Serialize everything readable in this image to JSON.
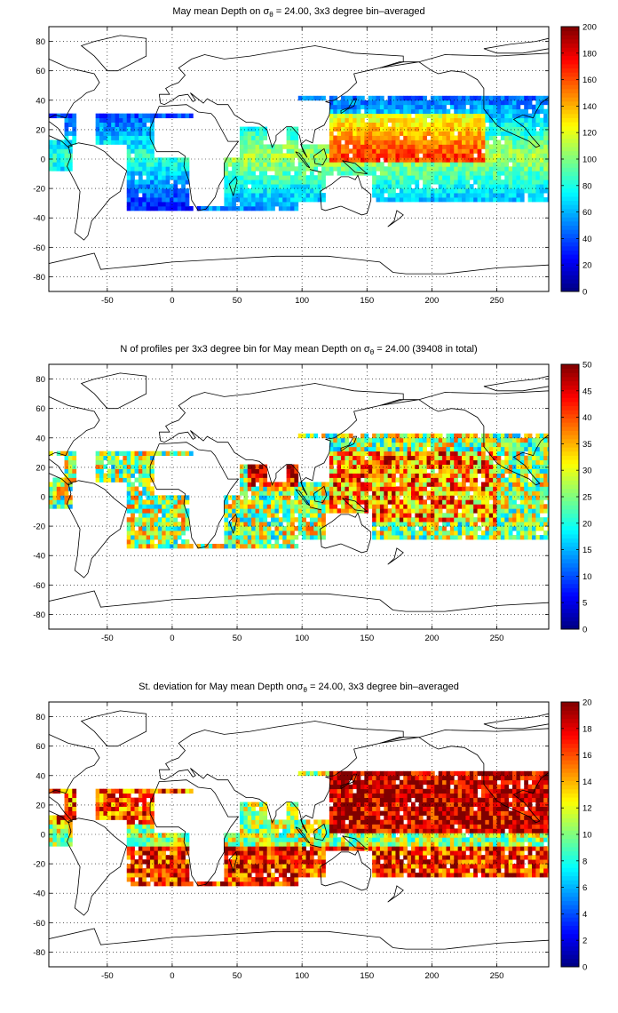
{
  "colormap": "jet",
  "panels": [
    {
      "id": "mean-depth",
      "title_parts": [
        "May ",
        "m",
        "ean Depth on ",
        "σ",
        "θ",
        " = 24.00, 3x3 degree bin–averaged"
      ],
      "colorbar": {
        "min": 0,
        "max": 200,
        "ticks": [
          "0",
          "20",
          "40",
          "60",
          "80",
          "100",
          "120",
          "140",
          "160",
          "180",
          "200"
        ]
      }
    },
    {
      "id": "profile-count",
      "title_parts": [
        "N of profiles per 3x3 degree bin for May ",
        "m",
        "ean Depth on ",
        "σ",
        "θ",
        " = 24.00 (39408 in total)"
      ],
      "colorbar": {
        "min": 0,
        "max": 50,
        "ticks": [
          "0",
          "5",
          "10",
          "15",
          "20",
          "25",
          "30",
          "35",
          "40",
          "45",
          "50"
        ]
      }
    },
    {
      "id": "std-dev",
      "title_parts": [
        "St. deviation for May ",
        "m",
        "ean Depth on",
        "σ",
        "θ",
        " = 24.00, 3x3 degree bin–averaged"
      ],
      "colorbar": {
        "min": 0,
        "max": 20,
        "ticks": [
          "0",
          "2",
          "4",
          "6",
          "8",
          "10",
          "12",
          "14",
          "16",
          "18",
          "20"
        ]
      }
    }
  ],
  "axes": {
    "xlim": [
      -95,
      290
    ],
    "ylim": [
      -90,
      90
    ],
    "xticks": [
      "-50",
      "0",
      "50",
      "100",
      "150",
      "200",
      "250"
    ],
    "yticks": [
      "80",
      "60",
      "40",
      "20",
      "0",
      "-20",
      "-40",
      "-60",
      "-80"
    ],
    "grid": "dotted"
  }
}
